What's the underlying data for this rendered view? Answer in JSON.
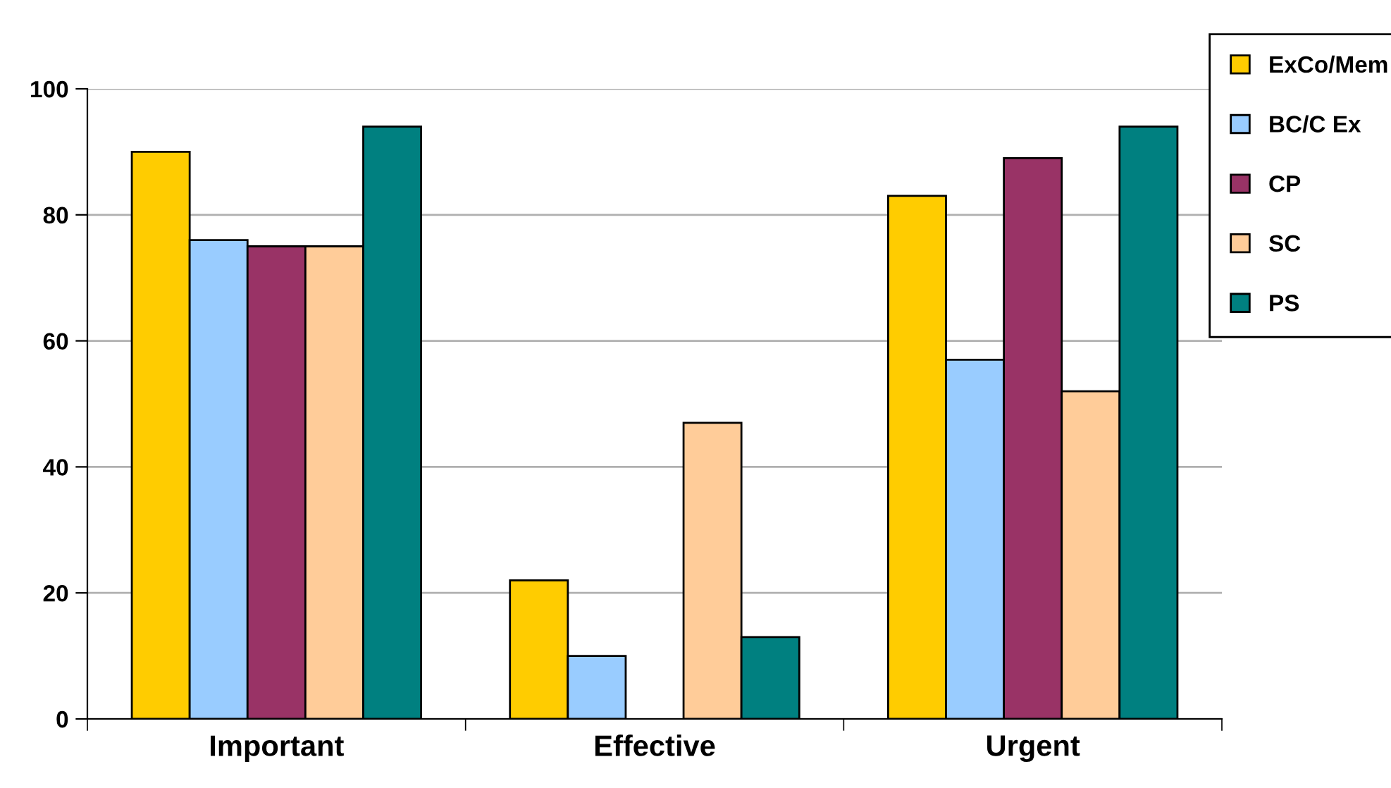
{
  "chart_data": {
    "type": "bar",
    "categories": [
      "Important",
      "Effective",
      "Urgent"
    ],
    "series": [
      {
        "name": "ExCo/Mem",
        "color": "#ffcc00",
        "values": [
          90,
          22,
          83
        ]
      },
      {
        "name": "BC/C Ex",
        "color": "#99ccff",
        "values": [
          76,
          10,
          57
        ]
      },
      {
        "name": "CP",
        "color": "#993366",
        "values": [
          75,
          null,
          89
        ]
      },
      {
        "name": "SC",
        "color": "#ffcc99",
        "values": [
          75,
          47,
          52
        ]
      },
      {
        "name": "PS",
        "color": "#008080",
        "values": [
          94,
          13,
          94
        ]
      }
    ],
    "ylim": [
      0,
      100
    ],
    "yticks": [
      0,
      20,
      40,
      60,
      80,
      100
    ],
    "grid": "y",
    "legend": "top right"
  }
}
